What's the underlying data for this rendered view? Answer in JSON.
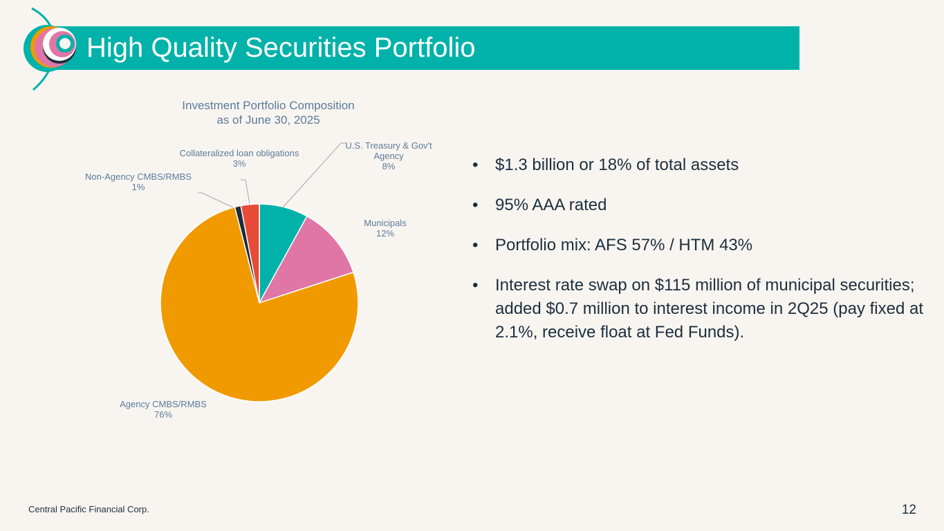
{
  "header": {
    "title": "High Quality Securities Portfolio"
  },
  "chart_data": {
    "type": "pie",
    "title_lines": [
      "Investment Portfolio Composition",
      "as of June 30, 2025"
    ],
    "slices": [
      {
        "label_lines": [
          "U.S. Treasury & Gov't",
          "Agency"
        ],
        "value": 8,
        "value_label": "8%",
        "color": "#00b2a9"
      },
      {
        "label_lines": [
          "Municipals"
        ],
        "value": 12,
        "value_label": "12%",
        "color": "#df76a5"
      },
      {
        "label_lines": [
          "Agency CMBS/RMBS"
        ],
        "value": 76,
        "value_label": "76%",
        "color": "#f09a00"
      },
      {
        "label_lines": [
          "Non-Agency CMBS/RMBS"
        ],
        "value": 1,
        "value_label": "1%",
        "color": "#1c2e3d"
      },
      {
        "label_lines": [
          "Collateralized loan obligations"
        ],
        "value": 3,
        "value_label": "3%",
        "color": "#e84b37"
      }
    ]
  },
  "bullets": [
    "$1.3 billion or 18% of total assets",
    "95% AAA rated",
    "Portfolio mix: AFS 57% / HTM 43%",
    "Interest rate swap on $115 million of municipal securities; added $0.7 million to interest income in 2Q25 (pay fixed at 2.1%, receive float at Fed Funds)."
  ],
  "bullet_symbol": "•",
  "footer": {
    "company": "Central Pacific Financial Corp.",
    "page_number": "12"
  },
  "colors": {
    "brand_teal": "#00b2a9",
    "label_blue": "#5b7a99",
    "text_dark": "#1c2e3d",
    "background": "#f8f5f1"
  }
}
